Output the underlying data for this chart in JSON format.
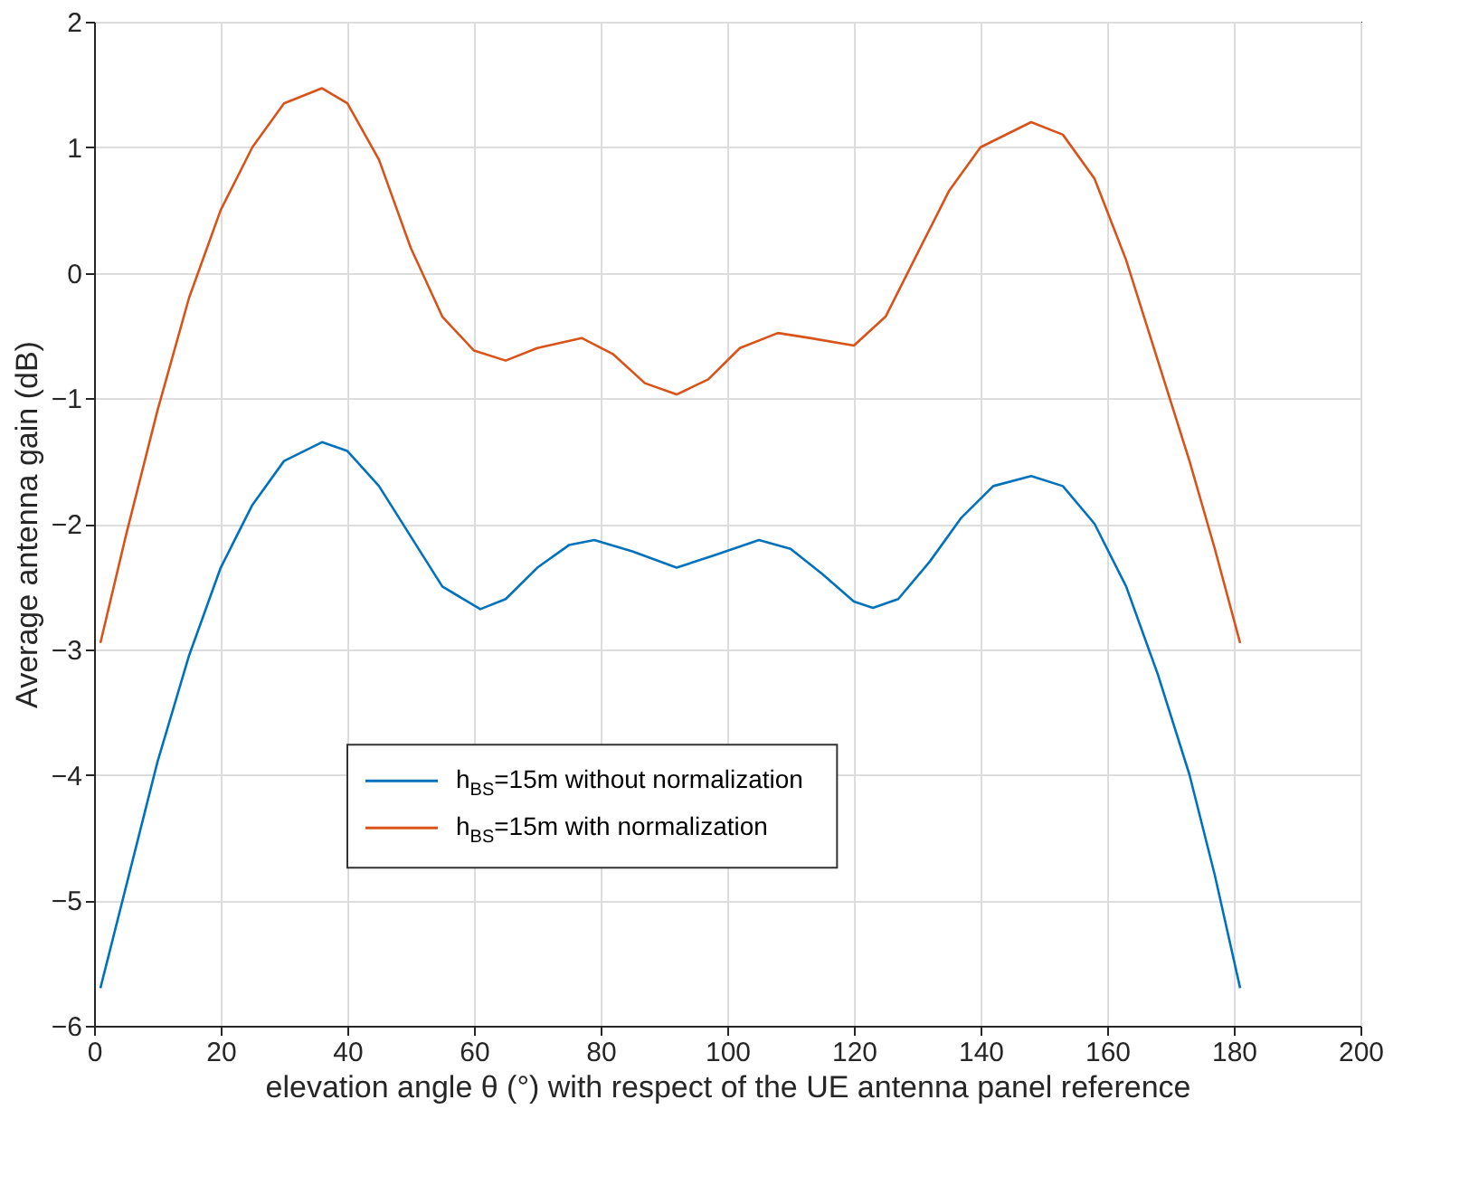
{
  "chart_data": {
    "type": "line",
    "xlabel": "elevation angle θ (°) with respect of the UE antenna panel reference",
    "ylabel": "Average antenna gain (dB)",
    "xlim": [
      0,
      200
    ],
    "xticks": [
      0,
      20,
      40,
      60,
      80,
      100,
      120,
      140,
      160,
      180,
      200
    ],
    "ylim": [
      -6,
      2
    ],
    "yticks": [
      -6,
      -5,
      -4,
      -3,
      -2,
      -1,
      0,
      1,
      2
    ],
    "grid": true,
    "legend": "bottom",
    "marker": "none",
    "line_style": "solid",
    "series": [
      {
        "name": "h$_{BS}$=15m without normalization",
        "color": "#0072bd",
        "x": [
          1,
          5,
          10,
          15,
          20,
          25,
          30,
          36,
          40,
          45,
          50,
          55,
          61,
          65,
          70,
          75,
          79,
          85,
          92,
          98,
          105,
          110,
          115,
          120,
          123,
          127,
          132,
          137,
          142,
          148,
          153,
          158,
          163,
          168,
          173,
          177,
          181
        ],
        "values": [
          -5.7,
          -4.9,
          -3.9,
          -3.05,
          -2.35,
          -1.85,
          -1.5,
          -1.35,
          -1.42,
          -1.7,
          -2.1,
          -2.5,
          -2.68,
          -2.6,
          -2.35,
          -2.17,
          -2.13,
          -2.22,
          -2.35,
          -2.25,
          -2.13,
          -2.2,
          -2.4,
          -2.62,
          -2.67,
          -2.6,
          -2.3,
          -1.95,
          -1.7,
          -1.62,
          -1.7,
          -2.0,
          -2.5,
          -3.2,
          -4.0,
          -4.8,
          -5.7
        ]
      },
      {
        "name": "h$_{BS}$=15m with normalization",
        "color": "#d95319",
        "x": [
          1,
          5,
          10,
          15,
          20,
          25,
          30,
          36,
          40,
          45,
          50,
          55,
          60,
          65,
          70,
          77,
          82,
          87,
          92,
          97,
          102,
          108,
          113,
          120,
          125,
          130,
          135,
          140,
          148,
          153,
          158,
          163,
          168,
          173,
          177,
          181
        ],
        "values": [
          -2.95,
          -2.1,
          -1.1,
          -0.2,
          0.5,
          1.0,
          1.35,
          1.47,
          1.35,
          0.9,
          0.2,
          -0.35,
          -0.62,
          -0.7,
          -0.6,
          -0.52,
          -0.65,
          -0.88,
          -0.97,
          -0.85,
          -0.6,
          -0.48,
          -0.52,
          -0.58,
          -0.35,
          0.15,
          0.65,
          1.0,
          1.2,
          1.1,
          0.75,
          0.1,
          -0.7,
          -1.5,
          -2.2,
          -2.95
        ]
      }
    ]
  }
}
